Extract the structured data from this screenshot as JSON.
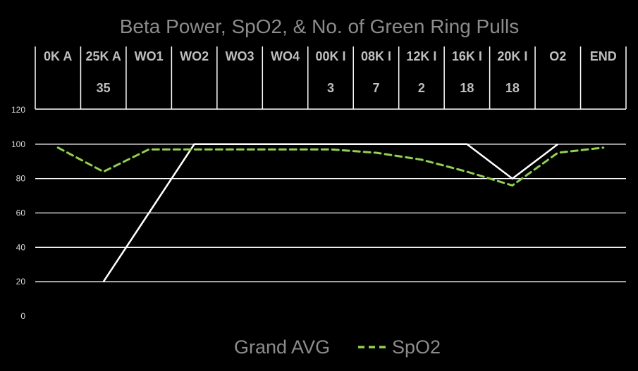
{
  "chart_data": {
    "type": "line",
    "title": "Beta Power, SpO2, & No. of Green Ring Pulls",
    "categories": [
      "0K A",
      "25K A",
      "WO1",
      "WO2",
      "WO3",
      "WO4",
      "00K I",
      "08K I",
      "12K I",
      "16K I",
      "20K I",
      "O2",
      "END"
    ],
    "ring_pulls": [
      "",
      "35",
      "",
      "",
      "",
      "",
      "3",
      "7",
      "2",
      "18",
      "18",
      "",
      ""
    ],
    "ylim": [
      0,
      120
    ],
    "yticks": [
      "0",
      "20",
      "40",
      "60",
      "80",
      "100",
      "120"
    ],
    "grid": true,
    "legend_position": "bottom",
    "series": [
      {
        "name": "Grand AVG",
        "style": "solid",
        "color": "#ffffff",
        "values": [
          null,
          20,
          60,
          100,
          100,
          100,
          100,
          100,
          100,
          100,
          80,
          100,
          null
        ]
      },
      {
        "name": "SpO2",
        "style": "dashed",
        "color": "#92d050",
        "values": [
          98,
          84,
          97,
          97,
          97,
          97,
          97,
          95,
          91,
          84,
          76,
          95,
          98
        ]
      }
    ]
  },
  "colors": {
    "background": "#000000",
    "text": "#bfbfbf",
    "title": "#8c8c8c",
    "grid": "#ffffff",
    "spo2": "#92d050"
  }
}
